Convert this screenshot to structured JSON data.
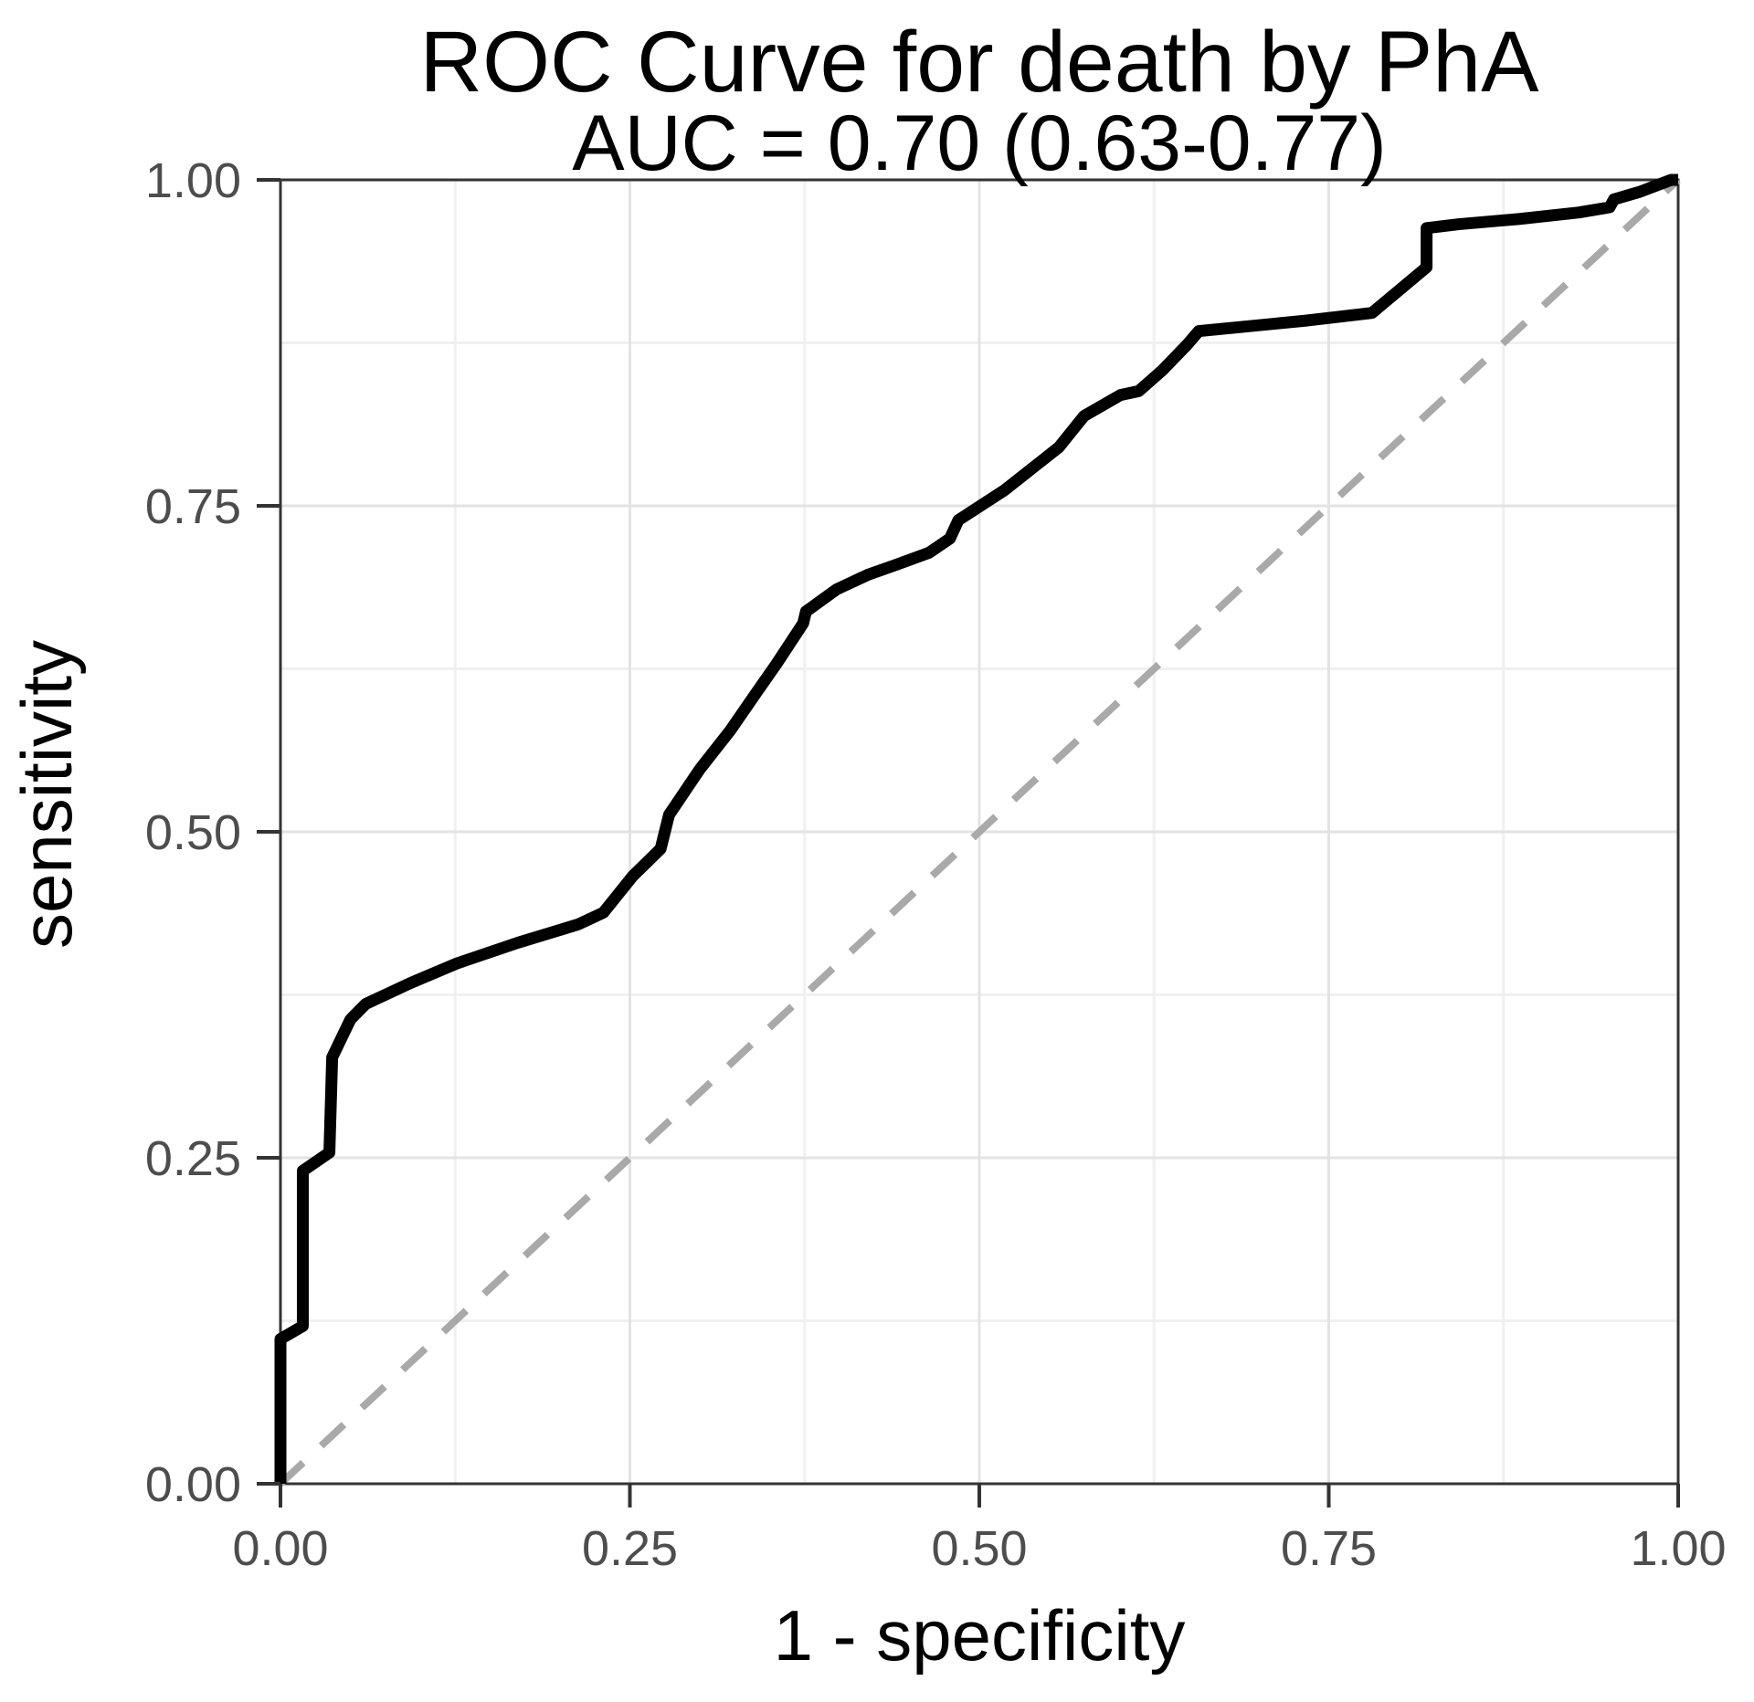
{
  "title": {
    "line1": "ROC Curve for death by PhA",
    "line2": "AUC = 0.70 (0.63-0.77)"
  },
  "axes": {
    "x": {
      "label": "1 - specificity",
      "ticks": [
        "0.00",
        "0.25",
        "0.50",
        "0.75",
        "1.00"
      ],
      "tick_values": [
        0,
        0.25,
        0.5,
        0.75,
        1
      ],
      "minor_values": [
        0.125,
        0.375,
        0.625,
        0.875
      ],
      "range": [
        0,
        1
      ]
    },
    "y": {
      "label": "sensitivity",
      "ticks": [
        "0.00",
        "0.25",
        "0.50",
        "0.75",
        "1.00"
      ],
      "tick_values": [
        0,
        0.25,
        0.5,
        0.75,
        1
      ],
      "minor_values": [
        0.125,
        0.375,
        0.625,
        0.875
      ],
      "range": [
        0,
        1
      ]
    }
  },
  "style": {
    "background": "#ffffff",
    "curve_color": "#000000",
    "reference_color": "#a9a9a9",
    "grid_major_color": "#e3e3e3",
    "grid_minor_color": "#f0f0f0",
    "panel_border_color": "#333333",
    "tick_mark_color": "#333333",
    "tick_label_color": "#4d4d4d",
    "text_color": "#000000"
  },
  "chart_data": {
    "type": "line",
    "title": "ROC Curve for death by PhA",
    "subtitle": "AUC = 0.70 (0.63-0.77)",
    "auc": {
      "value": 0.7,
      "ci_low": 0.63,
      "ci_high": 0.77
    },
    "xlabel": "1 - specificity",
    "ylabel": "sensitivity",
    "xlim": [
      0,
      1
    ],
    "ylim": [
      0,
      1
    ],
    "grid": "on",
    "legend": "none",
    "series": [
      {
        "name": "ROC curve",
        "style": "solid",
        "color": "#000000",
        "points": [
          [
            0.0,
            0.0
          ],
          [
            0.0,
            0.111
          ],
          [
            0.016,
            0.121
          ],
          [
            0.016,
            0.24
          ],
          [
            0.035,
            0.254
          ],
          [
            0.037,
            0.327
          ],
          [
            0.05,
            0.356
          ],
          [
            0.061,
            0.368
          ],
          [
            0.093,
            0.384
          ],
          [
            0.126,
            0.399
          ],
          [
            0.17,
            0.415
          ],
          [
            0.213,
            0.429
          ],
          [
            0.231,
            0.438
          ],
          [
            0.252,
            0.466
          ],
          [
            0.272,
            0.487
          ],
          [
            0.278,
            0.513
          ],
          [
            0.3,
            0.548
          ],
          [
            0.322,
            0.578
          ],
          [
            0.34,
            0.606
          ],
          [
            0.355,
            0.629
          ],
          [
            0.374,
            0.66
          ],
          [
            0.376,
            0.669
          ],
          [
            0.398,
            0.686
          ],
          [
            0.42,
            0.697
          ],
          [
            0.441,
            0.705
          ],
          [
            0.464,
            0.714
          ],
          [
            0.479,
            0.725
          ],
          [
            0.485,
            0.739
          ],
          [
            0.518,
            0.762
          ],
          [
            0.557,
            0.795
          ],
          [
            0.575,
            0.819
          ],
          [
            0.601,
            0.835
          ],
          [
            0.614,
            0.838
          ],
          [
            0.631,
            0.854
          ],
          [
            0.649,
            0.874
          ],
          [
            0.657,
            0.884
          ],
          [
            0.733,
            0.892
          ],
          [
            0.781,
            0.898
          ],
          [
            0.82,
            0.933
          ],
          [
            0.82,
            0.963
          ],
          [
            0.843,
            0.966
          ],
          [
            0.886,
            0.97
          ],
          [
            0.929,
            0.975
          ],
          [
            0.951,
            0.979
          ],
          [
            0.954,
            0.985
          ],
          [
            0.973,
            0.991
          ],
          [
            0.995,
            1.0
          ],
          [
            1.0,
            1.0
          ]
        ]
      },
      {
        "name": "chance reference diagonal",
        "style": "dashed",
        "color": "#a9a9a9",
        "points": [
          [
            0,
            0
          ],
          [
            1,
            1
          ]
        ]
      }
    ]
  }
}
